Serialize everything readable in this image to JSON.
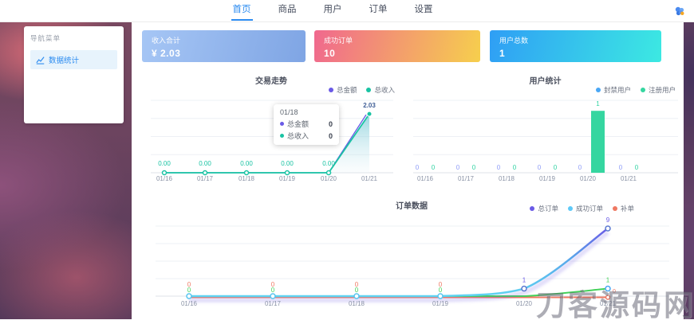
{
  "nav": {
    "items": [
      {
        "label": "首页",
        "active": true
      },
      {
        "label": "商品",
        "active": false
      },
      {
        "label": "用户",
        "active": false
      },
      {
        "label": "订单",
        "active": false
      },
      {
        "label": "设置",
        "active": false
      }
    ]
  },
  "topbar": {
    "avatar_icon": "gem-avatar-icon"
  },
  "sidebar": {
    "title": "导航菜单",
    "items": [
      {
        "label": "数据统计",
        "icon": "bar-chart-icon",
        "active": true
      }
    ]
  },
  "stat_cards": [
    {
      "label": "收入合计",
      "value": "¥ 2.03",
      "gradient": [
        "#a6c6f5",
        "#7fa5e4"
      ]
    },
    {
      "label": "成功订单",
      "value": "10",
      "gradient": [
        "#f0688e",
        "#f6cf4d"
      ]
    },
    {
      "label": "用户总数",
      "value": "1",
      "gradient": [
        "#2f9ef5",
        "#3ce9e2"
      ]
    }
  ],
  "chart_data": [
    {
      "type": "line",
      "title": "交易走势",
      "categories": [
        "01/16",
        "01/17",
        "01/18",
        "01/19",
        "01/20",
        "01/21"
      ],
      "series": [
        {
          "name": "总金额",
          "color": "#6a5ae6",
          "values": [
            0,
            0,
            0,
            0,
            0,
            2.03
          ]
        },
        {
          "name": "总收入",
          "color": "#19c3a3",
          "values": [
            0,
            0,
            0,
            0,
            0,
            2.03
          ],
          "area": true
        }
      ],
      "ylim": [
        0,
        2.5
      ],
      "grid": true,
      "legend_position": "top-right",
      "label_format": "fixed2",
      "peak_label": "2.03",
      "peak_label_color": "#3f5e96",
      "tooltip": {
        "title": "01/18",
        "rows": [
          {
            "label": "总金额",
            "value": "0",
            "color": "#6a5ae6"
          },
          {
            "label": "总收入",
            "value": "0",
            "color": "#19c3a3"
          }
        ]
      }
    },
    {
      "type": "bar",
      "title": "用户统计",
      "categories": [
        "01/16",
        "01/17",
        "01/18",
        "01/19",
        "01/20",
        "01/21"
      ],
      "series": [
        {
          "name": "封禁用户",
          "color": "#4aa7f5",
          "label_color": "#8f9cf7",
          "values": [
            0,
            0,
            0,
            0,
            0,
            0
          ]
        },
        {
          "name": "注册用户",
          "color": "#35d6a0",
          "label_color": "#2fd3a2",
          "values": [
            0,
            0,
            0,
            0,
            1,
            0
          ]
        }
      ],
      "ylim": [
        0,
        1.17
      ],
      "grid": true,
      "legend_position": "top-right"
    },
    {
      "type": "line",
      "title": "订单数据",
      "categories": [
        "01/16",
        "01/17",
        "01/18",
        "01/19",
        "01/20",
        "01/21"
      ],
      "series": [
        {
          "name": "总订单",
          "color": "#6a5ae6",
          "gradient": [
            "#5fd4f2",
            "#6a5ae6"
          ],
          "values": [
            0,
            0,
            0,
            0,
            1,
            9
          ],
          "smooth": true
        },
        {
          "name": "成功订单",
          "color": "#5ec9f8",
          "line_color": "#44d15a",
          "label_color": "#44d15a",
          "values": [
            0,
            0,
            0,
            0,
            0,
            1
          ],
          "smooth": true
        },
        {
          "name": "补单",
          "color": "#ef7862",
          "values": [
            0,
            0,
            0,
            0,
            0,
            0
          ],
          "smooth": true
        }
      ],
      "ylim": [
        0,
        9.3
      ],
      "grid": true,
      "legend_position": "top-right"
    }
  ],
  "watermark": "刀客源码网"
}
